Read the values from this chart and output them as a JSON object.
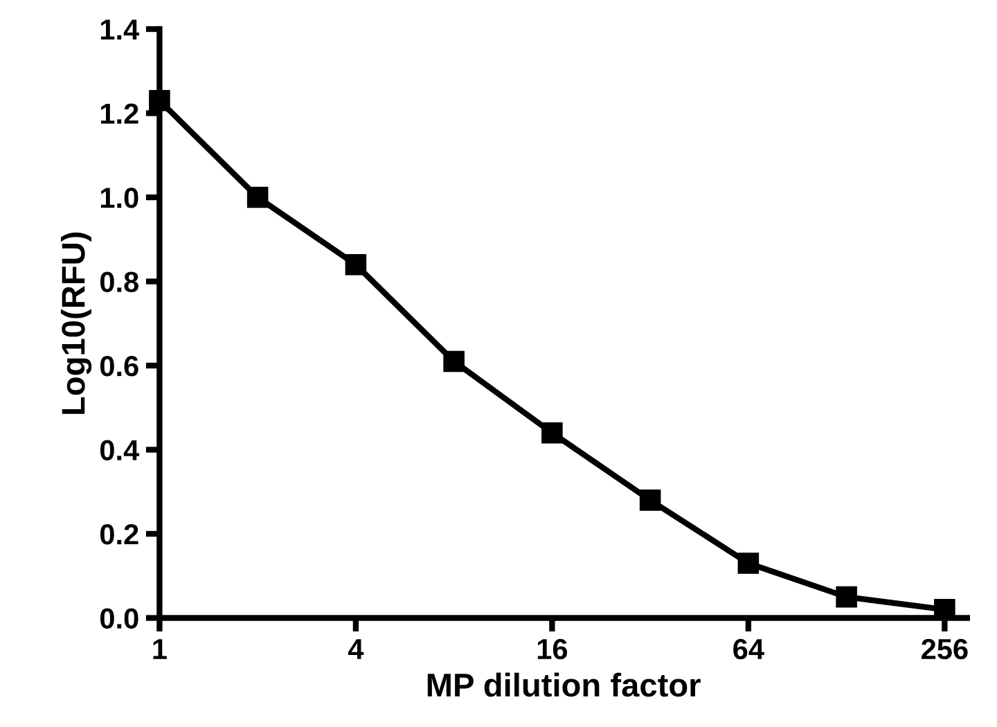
{
  "chart_data": {
    "type": "line",
    "xlabel": "MP dilution factor",
    "ylabel": "Log10(RFU)",
    "x": [
      1,
      2,
      4,
      8,
      16,
      32,
      64,
      128,
      256
    ],
    "series": [
      {
        "color": "#000000",
        "values": [
          1.23,
          1.0,
          0.84,
          0.61,
          0.44,
          0.28,
          0.13,
          0.05,
          0.02
        ]
      }
    ],
    "log": "x",
    "xlim": [
      1,
      300
    ],
    "xticks": [
      1,
      4,
      16,
      64,
      256
    ],
    "ylim": [
      0,
      1.4
    ],
    "yticks": [
      {
        "value": 0,
        "label": "0.0"
      },
      0.2,
      0.4,
      0.6,
      0.8,
      {
        "value": 1,
        "label": "1.0"
      },
      1.2,
      1.4
    ],
    "marker": "square",
    "line_style": "solid",
    "grid": false,
    "legend": false
  }
}
